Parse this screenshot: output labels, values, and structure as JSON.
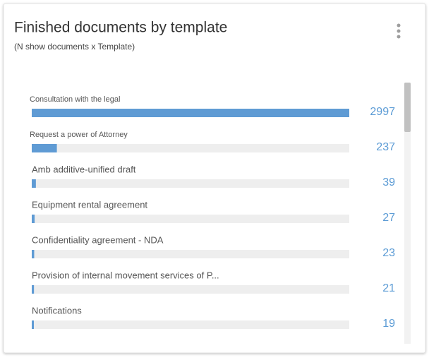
{
  "chart_data": {
    "type": "bar",
    "orientation": "horizontal",
    "title": "Finished documents by template",
    "subtitle": "(N show documents x Template)",
    "categories": [
      "Consultation with the legal",
      "Request a power of Attorney",
      "Amb additive-unified draft",
      "Equipment rental agreement",
      "Confidentiality agreement - NDA",
      "Provision of internal movement services of P...",
      "Notifications"
    ],
    "values": [
      2997,
      237,
      39,
      27,
      23,
      21,
      19
    ],
    "color": "#5f9bd4"
  }
}
